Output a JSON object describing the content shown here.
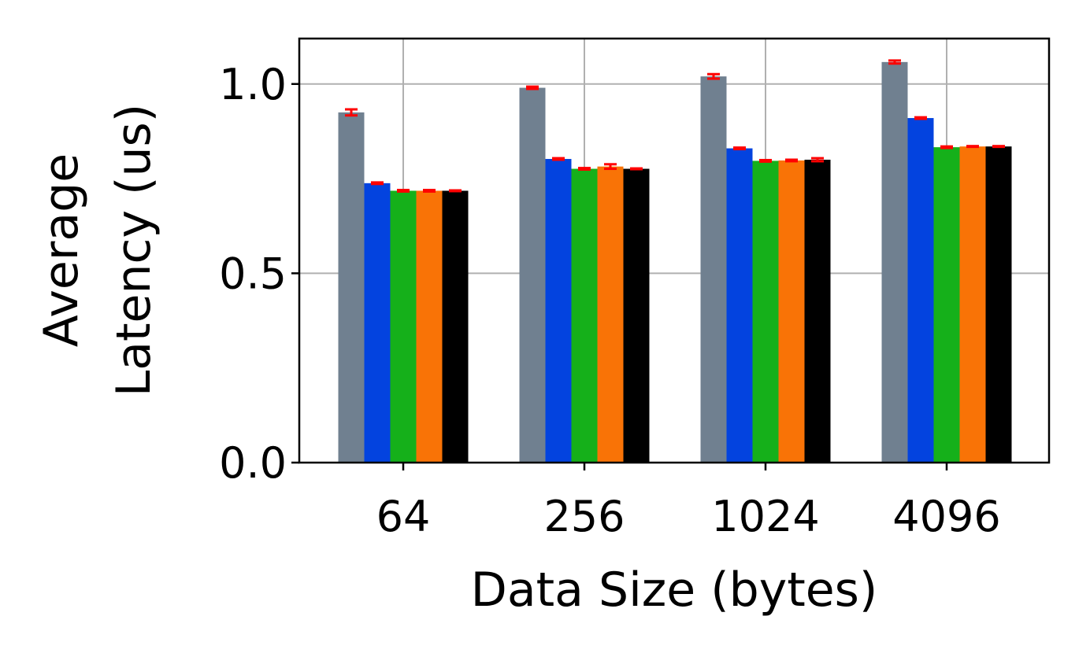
{
  "chart_data": {
    "type": "bar",
    "categories": [
      "64",
      "256",
      "1024",
      "4096"
    ],
    "series": [
      {
        "color": "#708090",
        "values": [
          0.925,
          0.99,
          1.02,
          1.058
        ],
        "errors": [
          0.008,
          0.003,
          0.006,
          0.004
        ]
      },
      {
        "color": "#0343df",
        "values": [
          0.738,
          0.802,
          0.83,
          0.91
        ],
        "errors": [
          0.002,
          0.002,
          0.002,
          0.002
        ]
      },
      {
        "color": "#15b01a",
        "values": [
          0.718,
          0.776,
          0.797,
          0.833
        ],
        "errors": [
          0.002,
          0.002,
          0.002,
          0.002
        ]
      },
      {
        "color": "#f97306",
        "values": [
          0.718,
          0.782,
          0.798,
          0.835
        ],
        "errors": [
          0.002,
          0.006,
          0.002,
          0.001
        ]
      },
      {
        "color": "#000000",
        "values": [
          0.718,
          0.776,
          0.8,
          0.835
        ],
        "errors": [
          0.001,
          0.001,
          0.004,
          0.001
        ]
      }
    ],
    "xlabel": "Data Size (bytes)",
    "ylabel_lines": [
      "Average",
      "Latency (us)"
    ],
    "ylim": [
      0,
      1.12
    ],
    "yticks": [
      0.0,
      0.5,
      1.0
    ],
    "ytick_labels": [
      "0.0",
      "0.5",
      "1.0"
    ],
    "grid": true,
    "error_color": "#ff0000"
  }
}
